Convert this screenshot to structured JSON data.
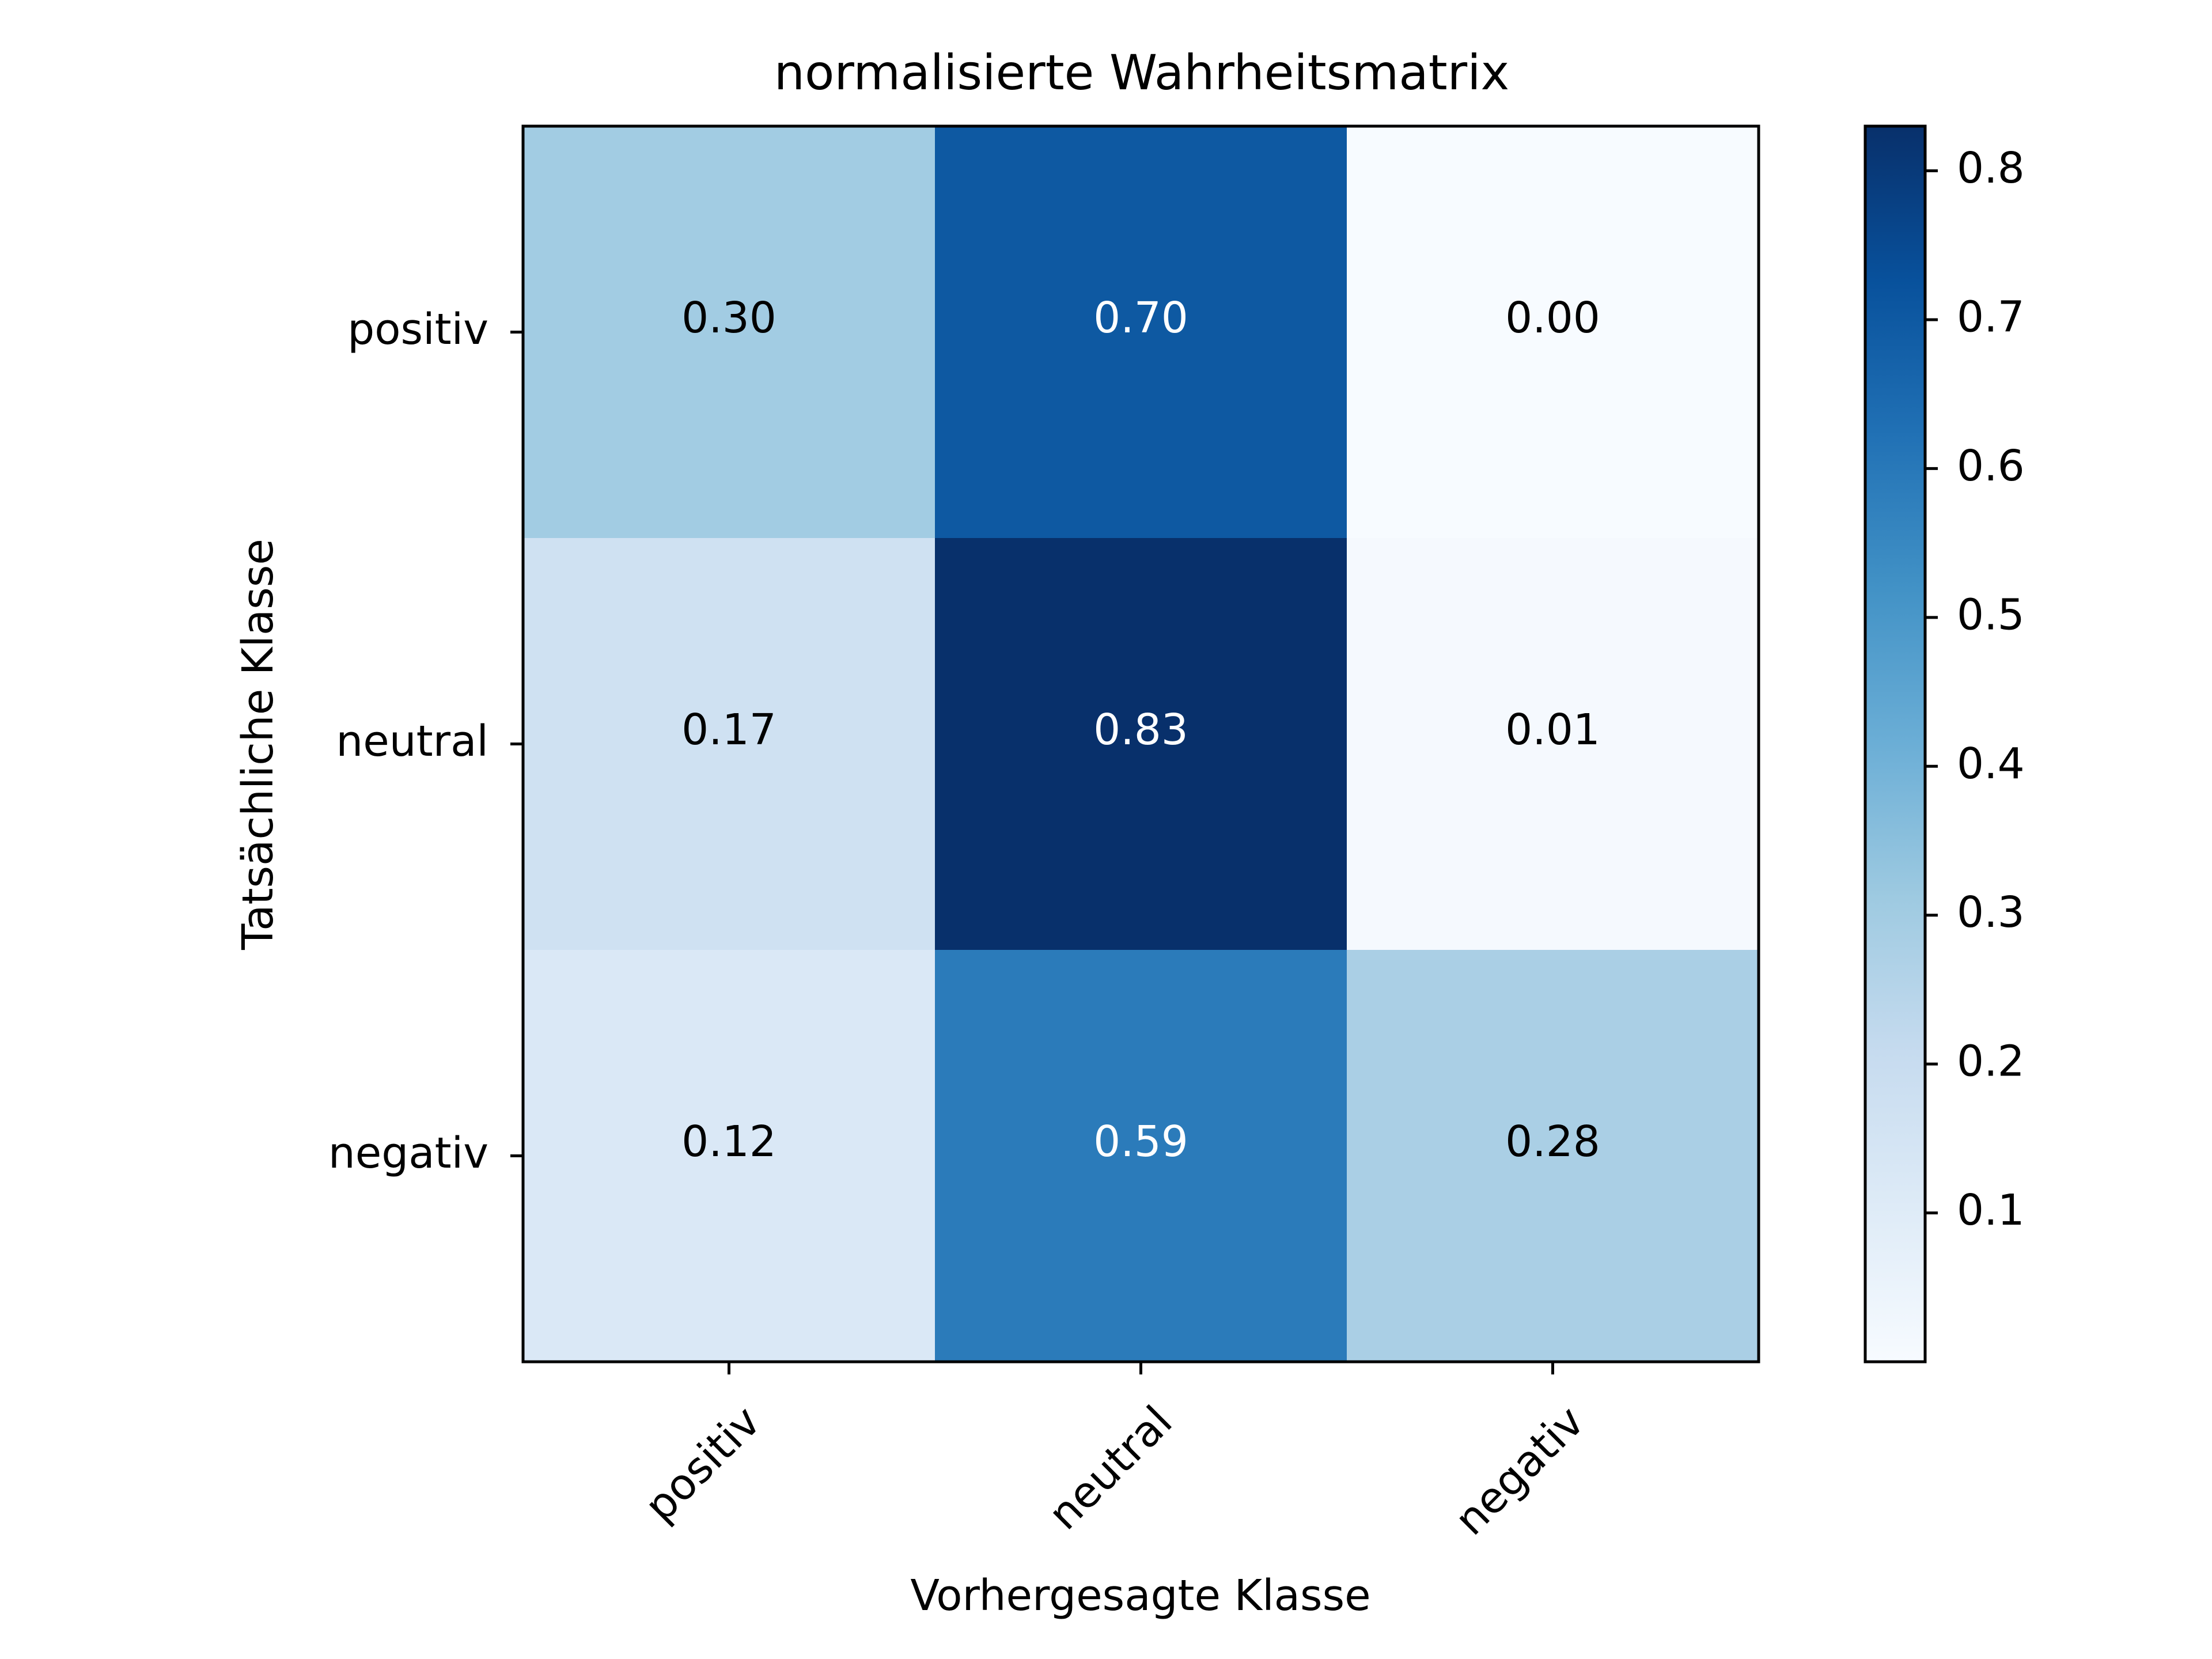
{
  "chart_data": {
    "type": "heatmap",
    "title": "normalisierte Wahrheitsmatrix",
    "xlabel": "Vorhergesagte Klasse",
    "ylabel": "Tatsächliche Klasse",
    "x_categories": [
      "positiv",
      "neutral",
      "negativ"
    ],
    "y_categories": [
      "positiv",
      "neutral",
      "negativ"
    ],
    "values": [
      [
        0.3,
        0.7,
        0.0
      ],
      [
        0.17,
        0.83,
        0.01
      ],
      [
        0.12,
        0.59,
        0.28
      ]
    ],
    "value_labels": [
      [
        "0.30",
        "0.70",
        "0.00"
      ],
      [
        "0.17",
        "0.83",
        "0.01"
      ],
      [
        "0.12",
        "0.59",
        "0.28"
      ]
    ],
    "colormap": "Blues",
    "colorbar": {
      "range": [
        0.0,
        0.83
      ],
      "ticks": [
        0.1,
        0.2,
        0.3,
        0.4,
        0.5,
        0.6,
        0.7,
        0.8
      ],
      "tick_labels": [
        "0.1",
        "0.2",
        "0.3",
        "0.4",
        "0.5",
        "0.6",
        "0.7",
        "0.8"
      ]
    },
    "grid": false,
    "x_tick_rotation": 45
  }
}
